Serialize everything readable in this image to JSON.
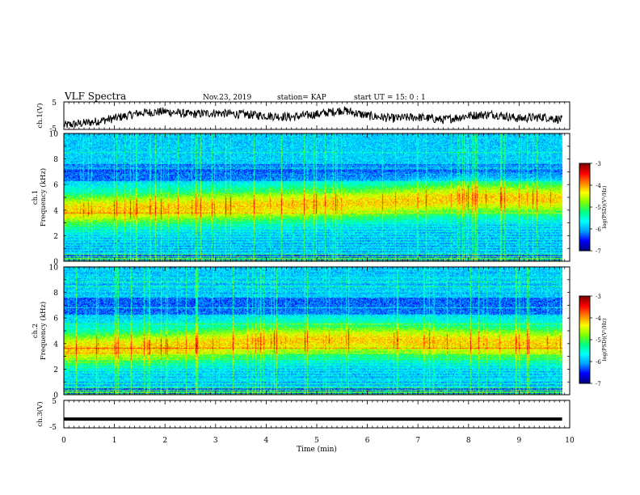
{
  "header": {
    "title": "VLF Spectra",
    "date": "Nov.23, 2019",
    "station": "station= KAP",
    "start": "start  UT =   15: 0  : 1"
  },
  "axes": {
    "ch1_label": "ch.1(V)",
    "spec1_label_a": "ch.1",
    "spec2_label_a": "ch.2",
    "freq_label": "Frequency  (kHz)",
    "ch3_label": "ch.3(V)",
    "xlabel": "Time  (min)",
    "colorbar_label": "log(PSD)(V²/Hz)"
  },
  "chart_data": [
    {
      "type": "line",
      "name": "ch1-waveform",
      "ylabel": "ch.1(V)",
      "ylim": [
        -5,
        5
      ],
      "yticks": [
        "5",
        "-5"
      ],
      "xlim": [
        0,
        10
      ],
      "x": [
        0,
        0.5,
        1.0,
        1.5,
        2.0,
        2.5,
        3.0,
        3.5,
        4.0,
        4.5,
        5.0,
        5.5,
        6.0,
        6.5,
        7.0,
        7.5,
        8.0,
        8.5,
        9.0,
        9.5,
        9.85
      ],
      "y": [
        -3.5,
        -2.5,
        -1.0,
        1.0,
        1.5,
        0.5,
        1.0,
        0.5,
        0.0,
        -0.5,
        0.5,
        2.0,
        0.0,
        -1.0,
        -0.5,
        -1.5,
        0.0,
        0.5,
        -1.0,
        -0.5,
        -1.5
      ]
    },
    {
      "type": "heatmap",
      "name": "ch1-spectrogram",
      "ylabel": "Frequency  (kHz)",
      "ylim": [
        0,
        10
      ],
      "yticks": [
        0,
        2,
        4,
        6,
        8,
        10
      ],
      "xlim": [
        0,
        10
      ],
      "x_extent": [
        0,
        9.85
      ],
      "colorbar": {
        "label": "log(PSD)(V²/Hz)",
        "range": [
          -7,
          -3
        ],
        "ticks": [
          "-3",
          "-4",
          "-5",
          "-6",
          "-7"
        ]
      },
      "emission_band_center_khz": {
        "t": [
          0,
          2,
          4,
          6,
          8,
          9.5
        ],
        "f": [
          4.0,
          4.2,
          4.4,
          4.6,
          5.0,
          4.9
        ]
      }
    },
    {
      "type": "heatmap",
      "name": "ch2-spectrogram",
      "ylabel": "Frequency  (kHz)",
      "ylim": [
        0,
        10
      ],
      "yticks": [
        0,
        2,
        4,
        6,
        8,
        10
      ],
      "xlim": [
        0,
        10
      ],
      "x_extent": [
        0,
        9.85
      ],
      "colorbar": {
        "label": "log(PSD)(V²/Hz)",
        "range": [
          -7,
          -3
        ],
        "ticks": [
          "-3",
          "-4",
          "-5",
          "-6",
          "-7"
        ]
      },
      "emission_band_center_khz": {
        "t": [
          0,
          2,
          4,
          6,
          8,
          9.5
        ],
        "f": [
          3.6,
          3.8,
          4.2,
          4.3,
          4.1,
          4.0
        ]
      }
    },
    {
      "type": "line",
      "name": "ch3-waveform",
      "ylabel": "ch.3(V)",
      "ylim": [
        -5,
        5
      ],
      "yticks": [
        "5",
        "-5"
      ],
      "xlim": [
        0,
        10
      ],
      "x": [
        0,
        9.85
      ],
      "y": [
        -1.8,
        -1.8
      ]
    }
  ],
  "xaxis": {
    "label": "Time  (min)",
    "range": [
      0,
      10
    ],
    "ticks": [
      "0",
      "1",
      "2",
      "3",
      "4",
      "5",
      "6",
      "7",
      "8",
      "9",
      "10"
    ]
  },
  "colors": {
    "colormap": [
      "#000080",
      "#0000ff",
      "#00a0ff",
      "#00ffff",
      "#00ff80",
      "#80ff00",
      "#ffff00",
      "#ff8000",
      "#ff0000",
      "#800000"
    ]
  }
}
